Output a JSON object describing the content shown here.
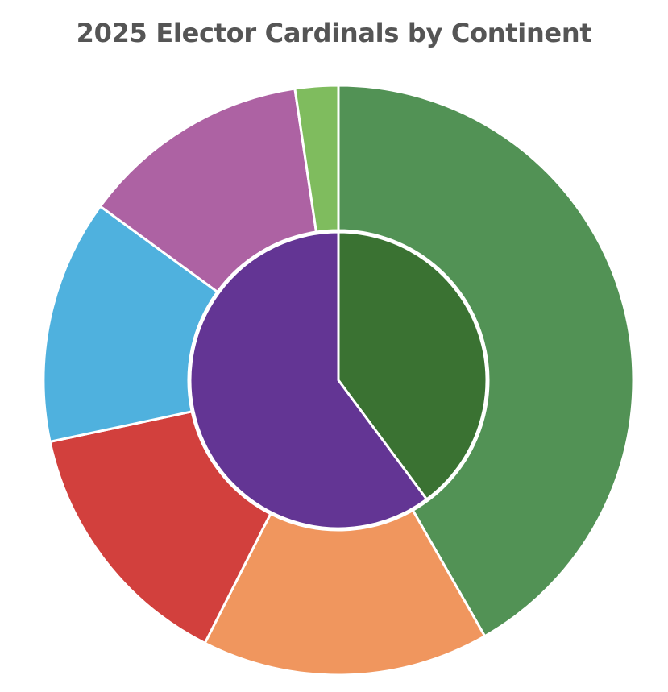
{
  "chart_data": {
    "type": "pie",
    "title": "2025 Elector Cardinals by Continent",
    "rings": [
      {
        "ring": "inner",
        "slices": [
          {
            "value": 53,
            "color": "#3A7232"
          },
          {
            "value": 80,
            "color": "#633594"
          }
        ]
      },
      {
        "ring": "outer",
        "slices": [
          {
            "value": 53,
            "color": "#529255"
          },
          {
            "value": 20,
            "color": "#F0965E"
          },
          {
            "value": 18,
            "color": "#D2403D"
          },
          {
            "value": 17,
            "color": "#4FB1DE"
          },
          {
            "value": 16,
            "color": "#AD62A3"
          },
          {
            "value": 3,
            "color": "#7FBC5E"
          }
        ]
      }
    ]
  }
}
